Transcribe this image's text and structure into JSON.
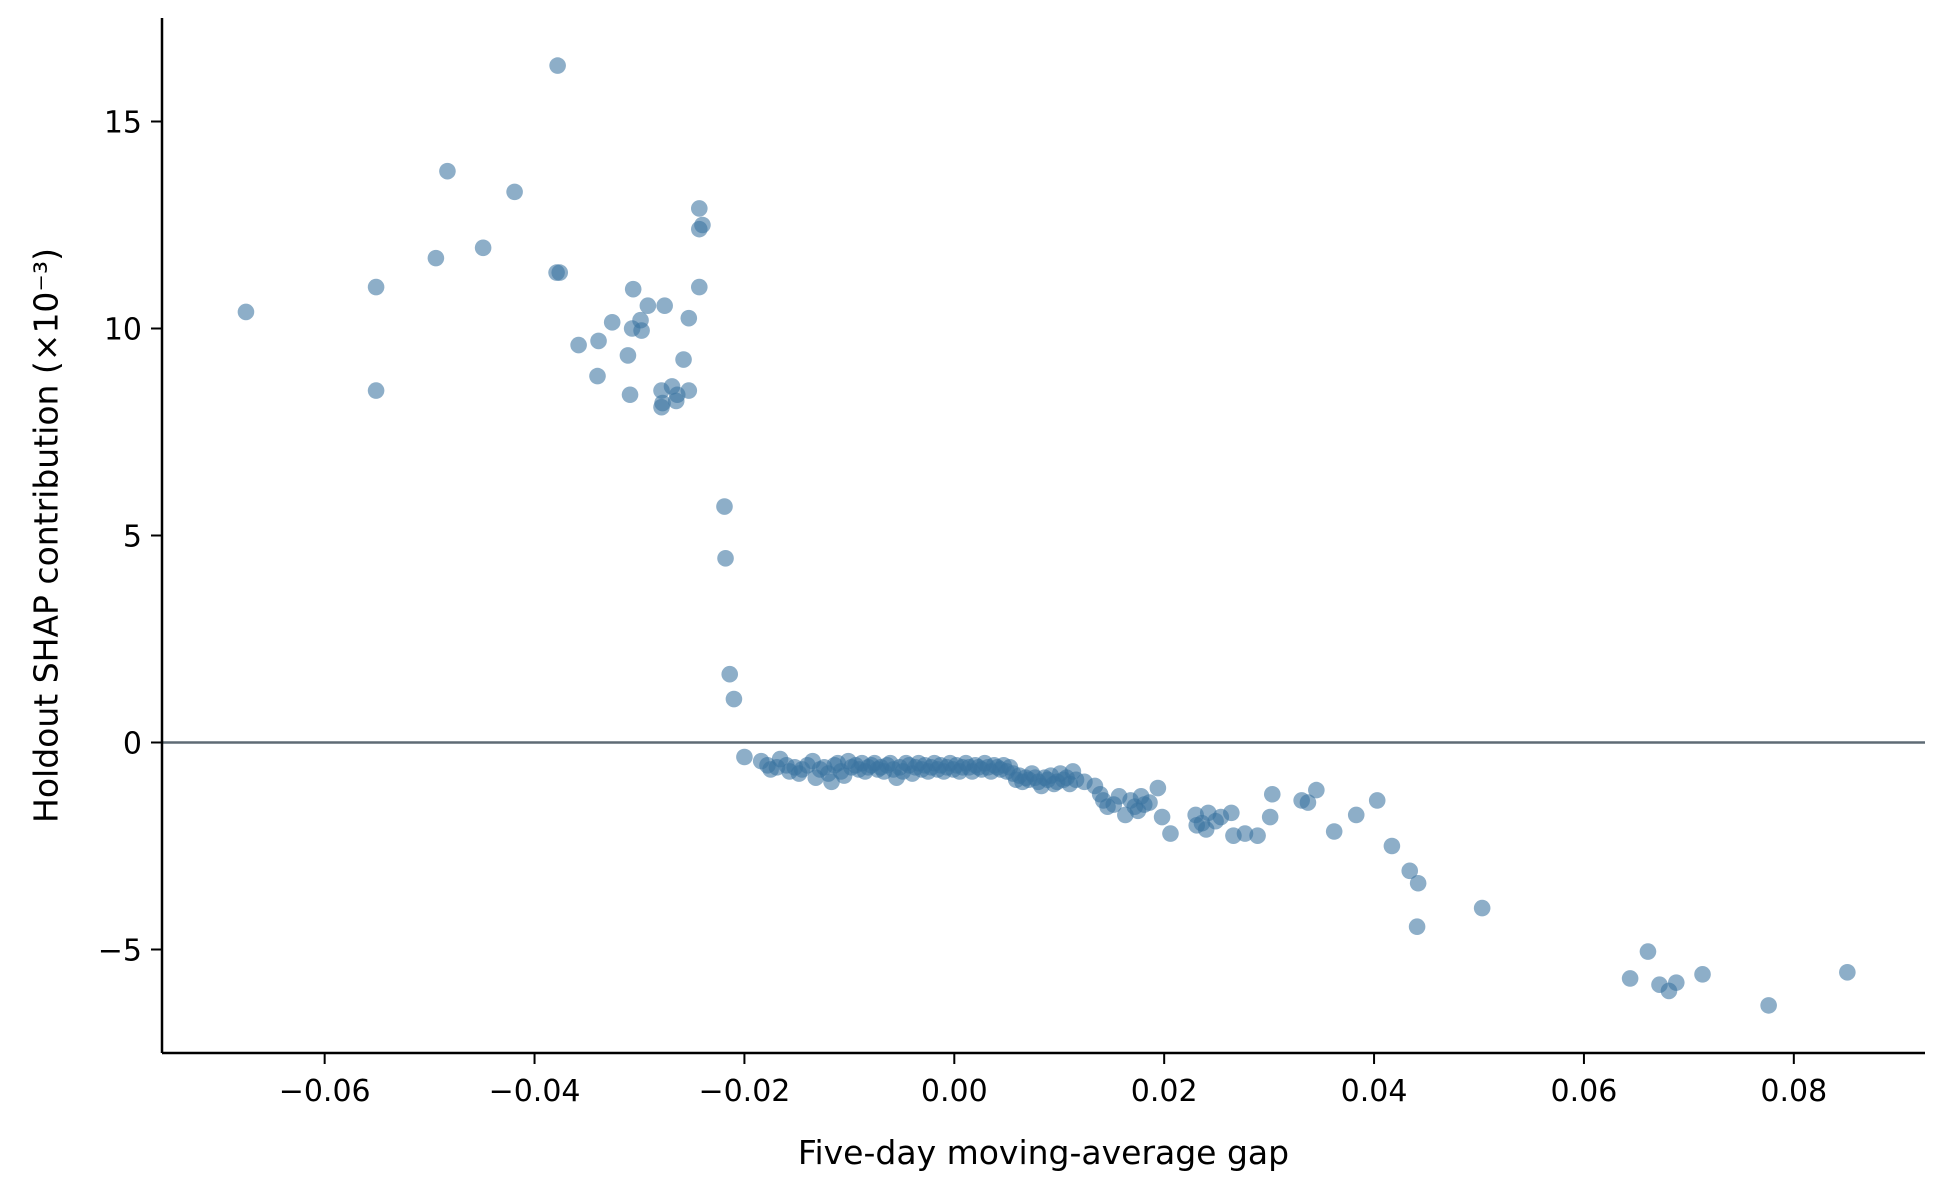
{
  "chart_data": {
    "type": "scatter",
    "title": "",
    "xlabel": "Five-day moving-average gap",
    "ylabel": "Holdout SHAP contribution (×10⁻³)",
    "xlim": [
      -0.0755,
      0.0925
    ],
    "ylim": [
      -7.5,
      17.5
    ],
    "xticks": [
      -0.06,
      -0.04,
      -0.02,
      0.0,
      0.02,
      0.04,
      0.06,
      0.08
    ],
    "xtick_labels": [
      "−0.06",
      "−0.04",
      "−0.02",
      "0.00",
      "0.02",
      "0.04",
      "0.06",
      "0.08"
    ],
    "yticks": [
      -5,
      0,
      5,
      10,
      15
    ],
    "ytick_labels": [
      "−5",
      "0",
      "5",
      "10",
      "15"
    ],
    "reference_line": {
      "y": 0,
      "color": "#5f6b75"
    },
    "grid": false,
    "legend": "none",
    "point_color": "#3a74a0",
    "series": [
      {
        "points": [
          [
            -0.0675,
            10.4
          ],
          [
            -0.0551,
            11.0
          ],
          [
            -0.0551,
            8.5
          ],
          [
            -0.0494,
            11.7
          ],
          [
            -0.0483,
            13.8
          ],
          [
            -0.0449,
            11.95
          ],
          [
            -0.0419,
            13.3
          ],
          [
            -0.0378,
            16.35
          ],
          [
            -0.0379,
            11.35
          ],
          [
            -0.0376,
            11.35
          ],
          [
            -0.0358,
            9.6
          ],
          [
            -0.0339,
            9.7
          ],
          [
            -0.034,
            8.85
          ],
          [
            -0.0326,
            10.15
          ],
          [
            -0.0311,
            9.35
          ],
          [
            -0.0309,
            8.4
          ],
          [
            -0.0306,
            10.95
          ],
          [
            -0.0307,
            10.0
          ],
          [
            -0.0299,
            10.2
          ],
          [
            -0.0298,
            9.95
          ],
          [
            -0.0292,
            10.55
          ],
          [
            -0.0279,
            8.5
          ],
          [
            -0.0279,
            8.1
          ],
          [
            -0.0278,
            8.2
          ],
          [
            -0.0276,
            10.55
          ],
          [
            -0.0269,
            8.6
          ],
          [
            -0.0265,
            8.25
          ],
          [
            -0.0264,
            8.4
          ],
          [
            -0.0258,
            9.25
          ],
          [
            -0.0253,
            10.25
          ],
          [
            -0.0253,
            8.5
          ],
          [
            -0.0243,
            12.9
          ],
          [
            -0.0243,
            12.4
          ],
          [
            -0.024,
            12.5
          ],
          [
            -0.0243,
            11.0
          ],
          [
            -0.0219,
            5.7
          ],
          [
            -0.0218,
            4.45
          ],
          [
            -0.0214,
            1.65
          ],
          [
            -0.021,
            1.05
          ],
          [
            -0.02,
            -0.35
          ],
          [
            -0.0184,
            -0.45
          ],
          [
            -0.0178,
            -0.55
          ],
          [
            -0.0175,
            -0.65
          ],
          [
            -0.0169,
            -0.6
          ],
          [
            -0.0166,
            -0.4
          ],
          [
            -0.016,
            -0.55
          ],
          [
            -0.0157,
            -0.7
          ],
          [
            -0.0152,
            -0.6
          ],
          [
            -0.0148,
            -0.75
          ],
          [
            -0.0145,
            -0.65
          ],
          [
            -0.014,
            -0.55
          ],
          [
            -0.0135,
            -0.45
          ],
          [
            -0.0132,
            -0.85
          ],
          [
            -0.0128,
            -0.65
          ],
          [
            -0.0124,
            -0.6
          ],
          [
            -0.012,
            -0.75
          ],
          [
            -0.0117,
            -0.95
          ],
          [
            -0.0114,
            -0.55
          ],
          [
            -0.0111,
            -0.5
          ],
          [
            -0.0108,
            -0.7
          ],
          [
            -0.0105,
            -0.8
          ],
          [
            -0.0101,
            -0.45
          ],
          [
            -0.0098,
            -0.6
          ],
          [
            -0.0094,
            -0.55
          ],
          [
            -0.0091,
            -0.65
          ],
          [
            -0.0088,
            -0.5
          ],
          [
            -0.0085,
            -0.7
          ],
          [
            -0.0082,
            -0.6
          ],
          [
            -0.0079,
            -0.55
          ],
          [
            -0.0076,
            -0.5
          ],
          [
            -0.0073,
            -0.65
          ],
          [
            -0.007,
            -0.6
          ],
          [
            -0.0067,
            -0.7
          ],
          [
            -0.0064,
            -0.55
          ],
          [
            -0.0061,
            -0.5
          ],
          [
            -0.0058,
            -0.65
          ],
          [
            -0.0055,
            -0.85
          ],
          [
            -0.0052,
            -0.6
          ],
          [
            -0.0049,
            -0.7
          ],
          [
            -0.0046,
            -0.5
          ],
          [
            -0.0043,
            -0.55
          ],
          [
            -0.004,
            -0.75
          ],
          [
            -0.0037,
            -0.6
          ],
          [
            -0.0034,
            -0.5
          ],
          [
            -0.0031,
            -0.65
          ],
          [
            -0.0028,
            -0.55
          ],
          [
            -0.0025,
            -0.7
          ],
          [
            -0.0022,
            -0.6
          ],
          [
            -0.0019,
            -0.5
          ],
          [
            -0.0016,
            -0.65
          ],
          [
            -0.0013,
            -0.55
          ],
          [
            -0.001,
            -0.7
          ],
          [
            -0.0007,
            -0.6
          ],
          [
            -0.0004,
            -0.5
          ],
          [
            -0.0001,
            -0.65
          ],
          [
            0.0002,
            -0.55
          ],
          [
            0.0005,
            -0.7
          ],
          [
            0.0008,
            -0.6
          ],
          [
            0.0011,
            -0.5
          ],
          [
            0.0014,
            -0.6
          ],
          [
            0.0017,
            -0.7
          ],
          [
            0.002,
            -0.55
          ],
          [
            0.0023,
            -0.6
          ],
          [
            0.0026,
            -0.65
          ],
          [
            0.0029,
            -0.5
          ],
          [
            0.0032,
            -0.6
          ],
          [
            0.0035,
            -0.7
          ],
          [
            0.0038,
            -0.55
          ],
          [
            0.0041,
            -0.6
          ],
          [
            0.0044,
            -0.65
          ],
          [
            0.0047,
            -0.55
          ],
          [
            0.005,
            -0.7
          ],
          [
            0.0053,
            -0.6
          ],
          [
            0.0056,
            -0.75
          ],
          [
            0.0059,
            -0.9
          ],
          [
            0.0062,
            -0.8
          ],
          [
            0.0065,
            -0.95
          ],
          [
            0.0068,
            -0.85
          ],
          [
            0.0071,
            -0.9
          ],
          [
            0.0074,
            -0.75
          ],
          [
            0.0077,
            -0.85
          ],
          [
            0.008,
            -0.95
          ],
          [
            0.0083,
            -1.05
          ],
          [
            0.0086,
            -0.85
          ],
          [
            0.0089,
            -0.9
          ],
          [
            0.0092,
            -0.8
          ],
          [
            0.0095,
            -1.0
          ],
          [
            0.0098,
            -0.95
          ],
          [
            0.0101,
            -0.75
          ],
          [
            0.0104,
            -0.9
          ],
          [
            0.0107,
            -0.85
          ],
          [
            0.011,
            -1.0
          ],
          [
            0.0113,
            -0.7
          ],
          [
            0.0116,
            -0.9
          ],
          [
            0.0124,
            -0.95
          ],
          [
            0.0134,
            -1.05
          ],
          [
            0.0139,
            -1.25
          ],
          [
            0.0142,
            -1.4
          ],
          [
            0.0146,
            -1.55
          ],
          [
            0.0152,
            -1.5
          ],
          [
            0.0157,
            -1.3
          ],
          [
            0.0163,
            -1.75
          ],
          [
            0.0168,
            -1.4
          ],
          [
            0.0172,
            -1.55
          ],
          [
            0.0175,
            -1.65
          ],
          [
            0.0178,
            -1.3
          ],
          [
            0.0181,
            -1.5
          ],
          [
            0.0186,
            -1.45
          ],
          [
            0.0194,
            -1.1
          ],
          [
            0.0198,
            -1.8
          ],
          [
            0.0206,
            -2.2
          ],
          [
            0.023,
            -1.75
          ],
          [
            0.0231,
            -2.0
          ],
          [
            0.0236,
            -1.95
          ],
          [
            0.024,
            -2.1
          ],
          [
            0.0242,
            -1.7
          ],
          [
            0.0249,
            -1.9
          ],
          [
            0.0254,
            -1.8
          ],
          [
            0.0264,
            -1.7
          ],
          [
            0.0266,
            -2.25
          ],
          [
            0.0277,
            -2.2
          ],
          [
            0.0289,
            -2.25
          ],
          [
            0.0301,
            -1.8
          ],
          [
            0.0303,
            -1.25
          ],
          [
            0.0331,
            -1.4
          ],
          [
            0.0337,
            -1.45
          ],
          [
            0.0345,
            -1.15
          ],
          [
            0.0362,
            -2.15
          ],
          [
            0.0383,
            -1.75
          ],
          [
            0.0403,
            -1.4
          ],
          [
            0.0417,
            -2.5
          ],
          [
            0.0434,
            -3.1
          ],
          [
            0.0442,
            -3.4
          ],
          [
            0.0441,
            -4.45
          ],
          [
            0.0503,
            -4.0
          ],
          [
            0.0644,
            -5.7
          ],
          [
            0.0661,
            -5.05
          ],
          [
            0.0672,
            -5.85
          ],
          [
            0.0681,
            -6.0
          ],
          [
            0.0688,
            -5.8
          ],
          [
            0.0713,
            -5.6
          ],
          [
            0.0776,
            -6.35
          ],
          [
            0.0851,
            -5.55
          ]
        ]
      }
    ]
  }
}
